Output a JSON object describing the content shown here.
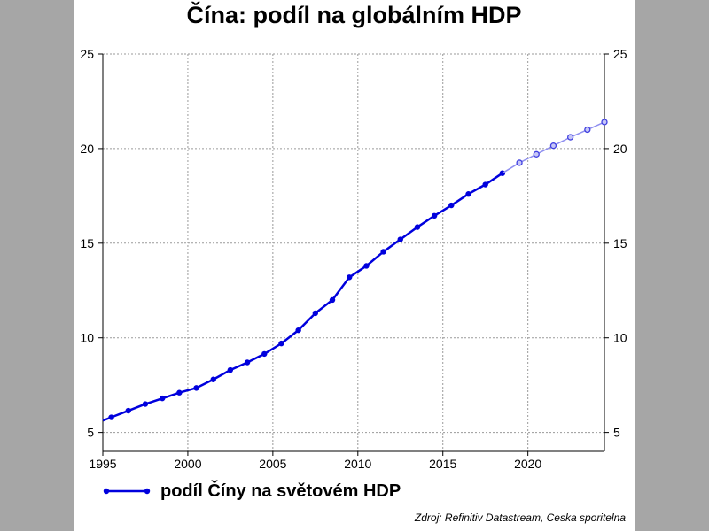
{
  "chart_data": {
    "type": "line",
    "title": "Čína: podíl na globálním HDP",
    "xlabel": "",
    "ylabel": "",
    "xlim": [
      1995,
      2024.5
    ],
    "ylim": [
      4,
      25
    ],
    "x_ticks": [
      1995,
      2000,
      2005,
      2010,
      2015,
      2020
    ],
    "y_ticks": [
      5,
      10,
      15,
      20,
      25
    ],
    "grid": true,
    "dual_y_axis": true,
    "legend_position": "bottom-left",
    "colors": {
      "actual": "#0000dd",
      "forecast": "#8f8ff0"
    },
    "series": [
      {
        "name": "podíl Číny na světovém HDP",
        "x": [
          1995.5,
          1996.5,
          1997.5,
          1998.5,
          1999.5,
          2000.5,
          2001.5,
          2002.5,
          2003.5,
          2004.5,
          2005.5,
          2006.5,
          2007.5,
          2008.5,
          2009.5,
          2010.5,
          2011.5,
          2012.5,
          2013.5,
          2014.5,
          2015.5,
          2016.5,
          2017.5,
          2018.5
        ],
        "y": [
          5.8,
          6.15,
          6.5,
          6.8,
          7.1,
          7.35,
          7.8,
          8.3,
          8.7,
          9.15,
          9.7,
          10.4,
          11.3,
          12.0,
          13.2,
          13.8,
          14.55,
          15.2,
          15.85,
          16.45,
          17.0,
          17.6,
          18.1,
          18.7
        ]
      },
      {
        "name": "",
        "forecast": true,
        "x": [
          2018.5,
          2019.5,
          2020.5,
          2021.5,
          2022.5,
          2023.5,
          2024.5
        ],
        "y": [
          18.7,
          19.25,
          19.7,
          20.15,
          20.6,
          21.0,
          21.4
        ]
      }
    ]
  },
  "legend": {
    "label": "podíl Číny na světovém HDP"
  },
  "source": "Zdroj: Refinitiv Datastream, Ceska sporitelna"
}
